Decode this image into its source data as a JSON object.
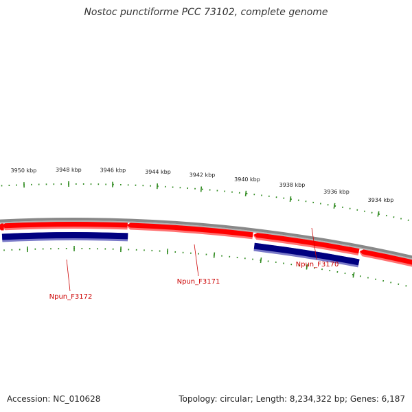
{
  "title": "Nostoc punctiforme PCC 73102, complete genome",
  "footer": {
    "accession": "Accession: NC_010628",
    "summary": "Topology: circular; Length: 8,234,322 bp; Genes: 6,187"
  },
  "colors": {
    "backbone": "#888888",
    "backbone_shadow": "#b4b4b4",
    "gene_arrow": "#ff0000",
    "gene_arrow_light": "#ff7373",
    "cds_bar": "#000080",
    "cds_bar_light": "#7a7ac8",
    "tick": "#2f8a1f",
    "label_text": "#cc0000",
    "label_line": "#cc0000"
  },
  "scale": {
    "unit": "kbp",
    "labels": [
      "3950 kbp",
      "3948 kbp",
      "3946 kbp",
      "3944 kbp",
      "3942 kbp",
      "3940 kbp",
      "3938 kbp",
      "3936 kbp",
      "3934 kbp"
    ]
  },
  "genes": [
    {
      "name": "Npun_F3172",
      "strand": "reverse"
    },
    {
      "name": "Npun_F3171",
      "strand": "reverse"
    },
    {
      "name": "Npun_F3170",
      "strand": "reverse"
    }
  ]
}
